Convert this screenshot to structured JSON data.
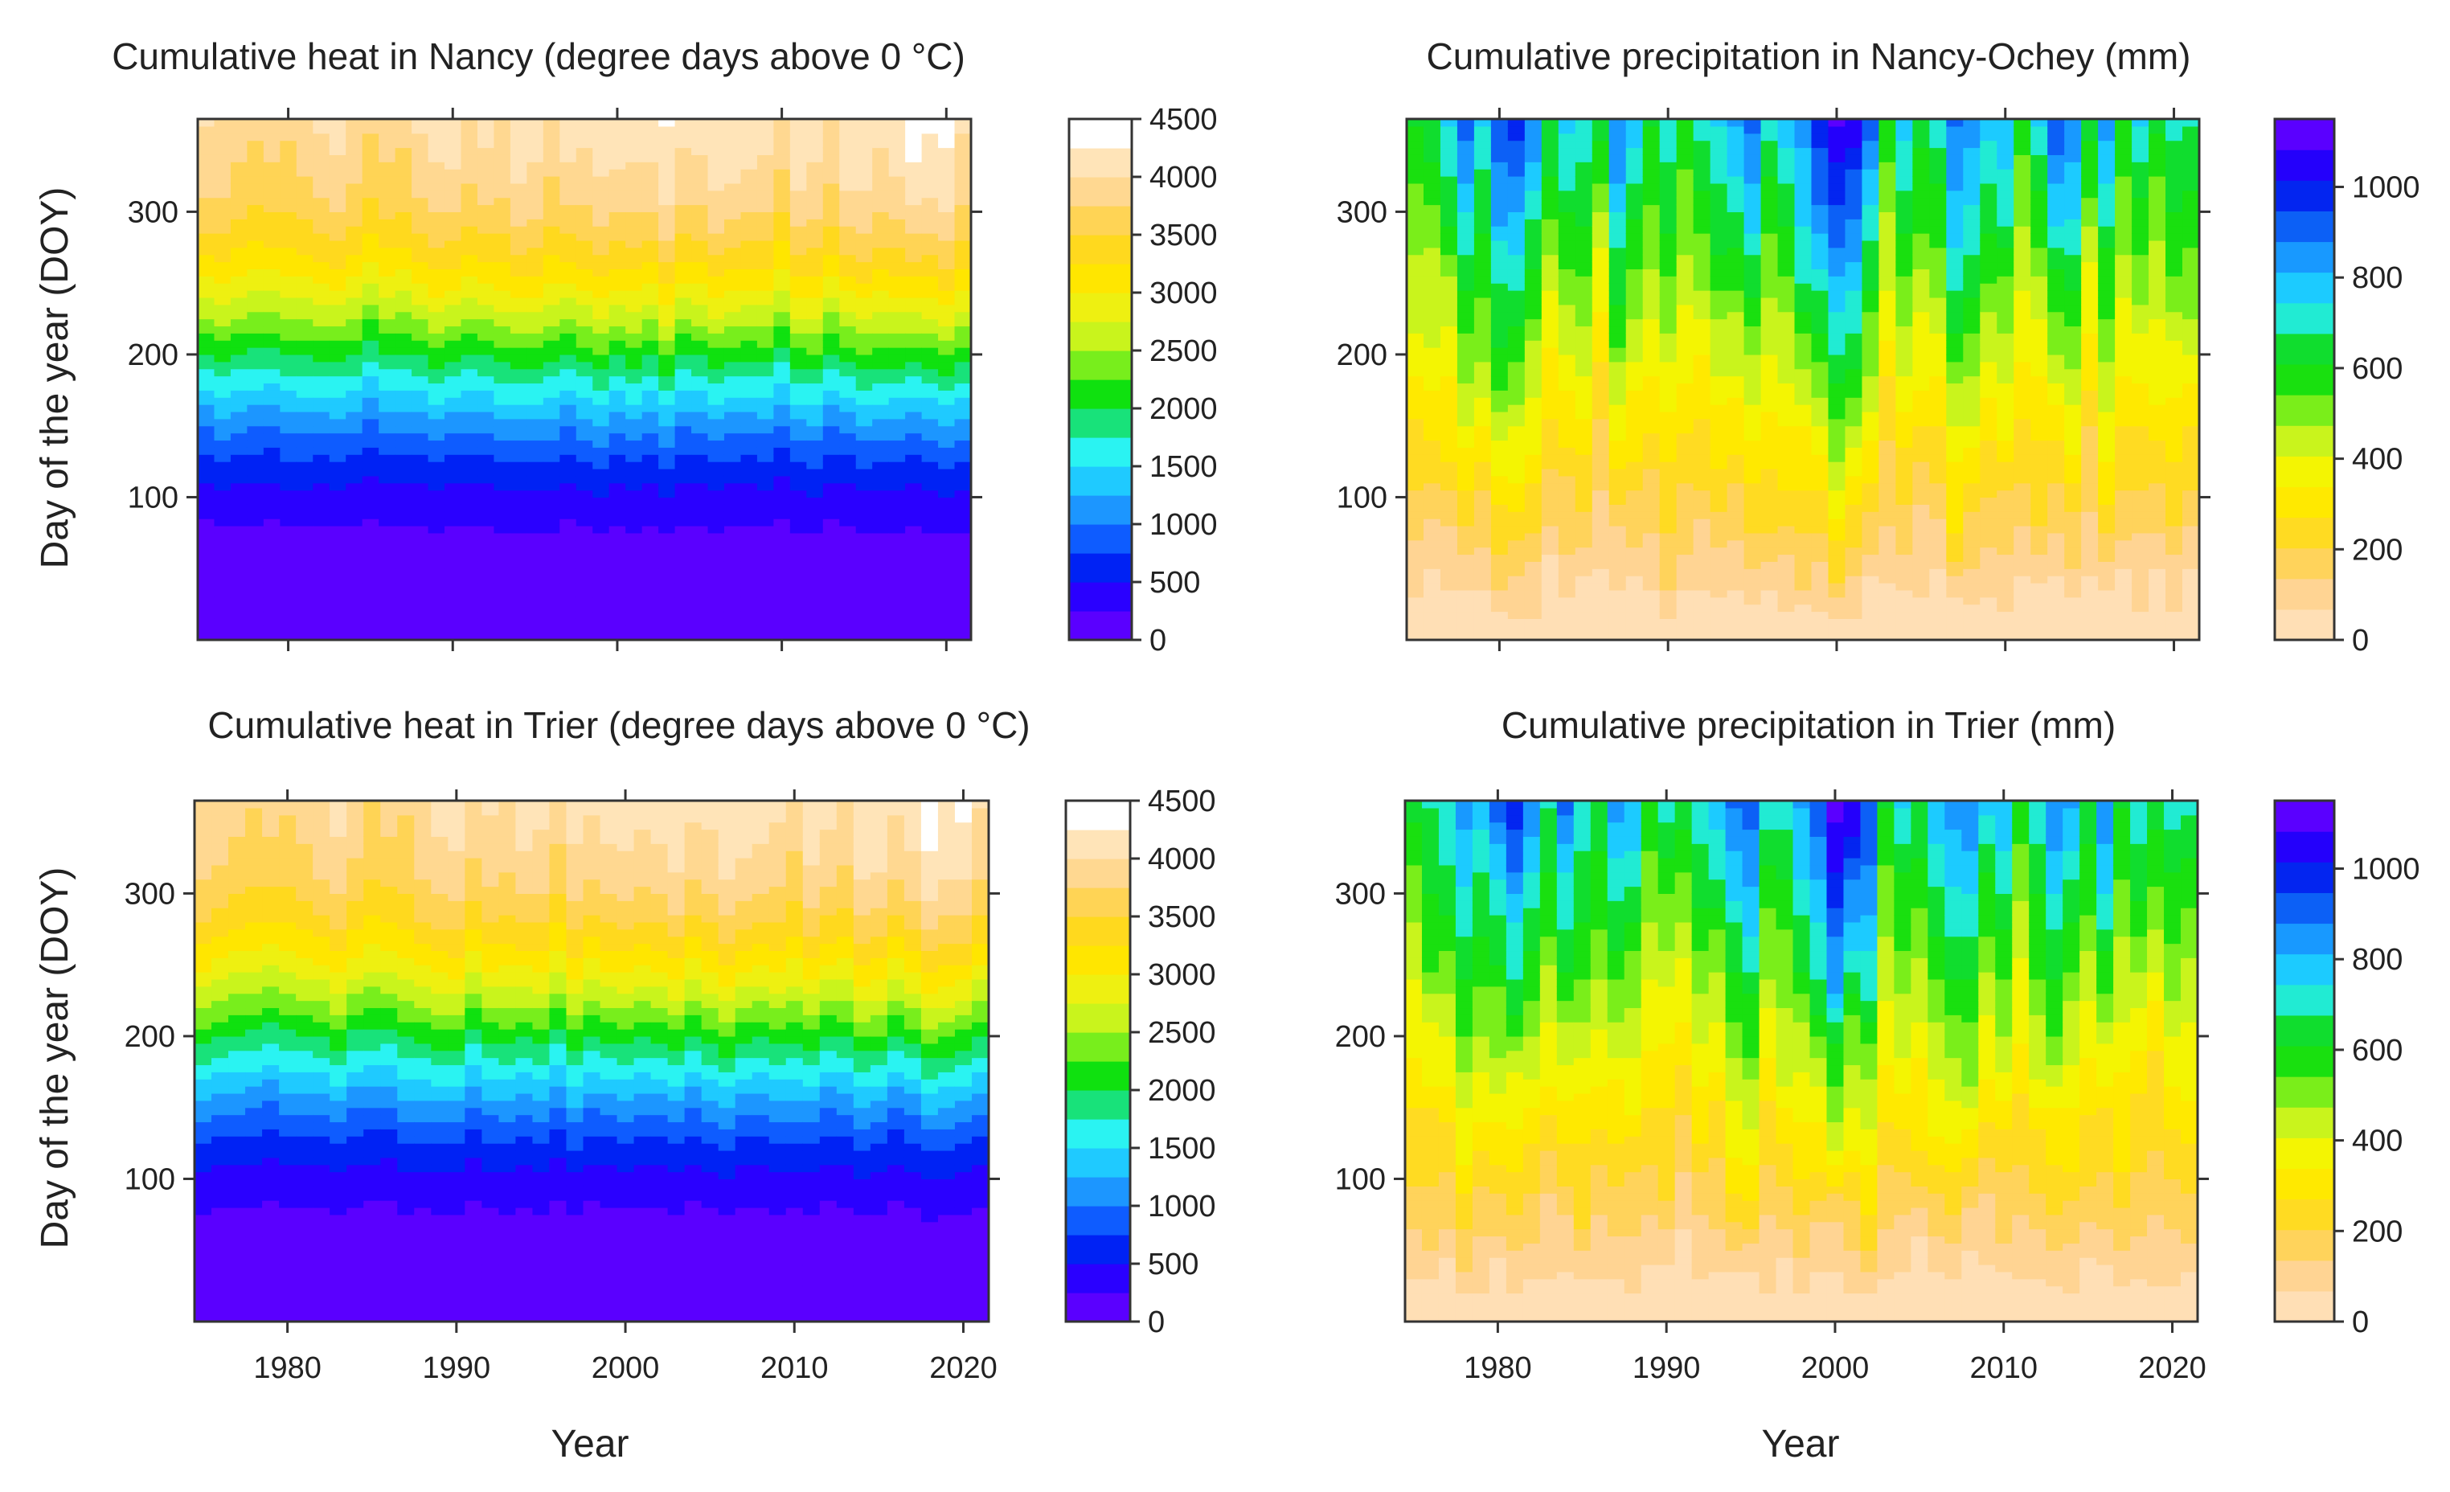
{
  "figure": {
    "x_axis_label": "Year",
    "y_axis_label": "Day of the year (DOY)"
  },
  "palettes": {
    "heat": [
      "#5a00ff",
      "#2a00ff",
      "#0022f4",
      "#0e5cff",
      "#1c96ff",
      "#1fcaff",
      "#2af3f2",
      "#18e27a",
      "#0fe10f",
      "#78ee1c",
      "#c9f41c",
      "#eef011",
      "#ffe600",
      "#ffd91e",
      "#ffd455",
      "#ffd891",
      "#ffe4b8",
      "#ffffff"
    ],
    "precip": [
      "#ffdfb5",
      "#ffd493",
      "#ffd35b",
      "#ffdb22",
      "#ffe900",
      "#f4f502",
      "#c9f41c",
      "#7aee1a",
      "#19e00f",
      "#10dd2e",
      "#21ebd3",
      "#1ccbff",
      "#1899ff",
      "#0c60f6",
      "#0325f0",
      "#2400fb",
      "#5a00ff"
    ]
  },
  "chart_data": [
    {
      "id": "nancy-heat",
      "type": "heatmap",
      "palette": "heat",
      "kind": "heat",
      "site": "Nancy",
      "title": "Cumulative heat in Nancy (degree days above 0 °C)",
      "xlabel": "",
      "ylabel": "Day of the year (DOY)",
      "x_range": [
        1974.5,
        2021.5
      ],
      "y_range": [
        0,
        365
      ],
      "x_ticks": [
        1980,
        1990,
        2000,
        2010,
        2020
      ],
      "x_tick_labels_shown": false,
      "y_ticks": [
        100,
        200,
        300
      ],
      "colorbar": {
        "min": 0,
        "max": 4500,
        "step": 250,
        "ticks": [
          "0",
          "500",
          "1000",
          "1500",
          "2000",
          "2500",
          "3000",
          "3500",
          "4000",
          "4500"
        ]
      }
    },
    {
      "id": "nancy-precip",
      "type": "heatmap",
      "palette": "precip",
      "kind": "precip",
      "site": "Nancy-Ochey",
      "title": "Cumulative precipitation in Nancy-Ochey (mm)",
      "xlabel": "",
      "ylabel": "",
      "x_range": [
        1974.5,
        2021.5
      ],
      "y_range": [
        0,
        365
      ],
      "x_ticks": [
        1980,
        1990,
        2000,
        2010,
        2020
      ],
      "x_tick_labels_shown": false,
      "y_ticks": [
        100,
        200,
        300
      ],
      "colorbar": {
        "min": 0,
        "max": 1150,
        "step": 67.6,
        "ticks": [
          "0",
          "200",
          "400",
          "600",
          "800",
          "1000"
        ]
      }
    },
    {
      "id": "trier-heat",
      "type": "heatmap",
      "palette": "heat",
      "kind": "heat",
      "site": "Trier",
      "title": "Cumulative heat in Trier (degree days above 0 °C)",
      "xlabel": "Year",
      "ylabel": "Day of the year (DOY)",
      "x_range": [
        1974.5,
        2021.5
      ],
      "y_range": [
        0,
        365
      ],
      "x_ticks": [
        1980,
        1990,
        2000,
        2010,
        2020
      ],
      "x_tick_labels_shown": true,
      "y_ticks": [
        100,
        200,
        300
      ],
      "colorbar": {
        "min": 0,
        "max": 4500,
        "step": 250,
        "ticks": [
          "0",
          "500",
          "1000",
          "1500",
          "2000",
          "2500",
          "3000",
          "3500",
          "4000",
          "4500"
        ]
      }
    },
    {
      "id": "trier-precip",
      "type": "heatmap",
      "palette": "precip",
      "kind": "precip",
      "site": "Trier",
      "title": "Cumulative precipitation in Trier (mm)",
      "xlabel": "Year",
      "ylabel": "",
      "x_range": [
        1974.5,
        2021.5
      ],
      "y_range": [
        0,
        365
      ],
      "x_ticks": [
        1980,
        1990,
        2000,
        2010,
        2020
      ],
      "x_tick_labels_shown": true,
      "y_ticks": [
        100,
        200,
        300
      ],
      "colorbar": {
        "min": 0,
        "max": 1150,
        "step": 67.6,
        "ticks": [
          "0",
          "200",
          "400",
          "600",
          "800",
          "1000"
        ]
      }
    }
  ],
  "series": {
    "years": [
      1975,
      1976,
      1977,
      1978,
      1979,
      1980,
      1981,
      1982,
      1983,
      1984,
      1985,
      1986,
      1987,
      1988,
      1989,
      1990,
      1991,
      1992,
      1993,
      1994,
      1995,
      1996,
      1997,
      1998,
      1999,
      2000,
      2001,
      2002,
      2003,
      2004,
      2005,
      2006,
      2007,
      2008,
      2009,
      2010,
      2011,
      2012,
      2013,
      2014,
      2015,
      2016,
      2017,
      2018,
      2019,
      2020,
      2021
    ],
    "nancy_heat_annual_total": [
      4020,
      3980,
      3850,
      3790,
      3860,
      3790,
      3870,
      4020,
      4080,
      3920,
      3780,
      3850,
      3800,
      4030,
      4080,
      4120,
      3940,
      4060,
      3950,
      4160,
      4090,
      3880,
      4110,
      4050,
      4130,
      4150,
      4090,
      4120,
      4260,
      4060,
      4080,
      4240,
      4190,
      4120,
      4070,
      3880,
      4210,
      4090,
      3950,
      4250,
      4220,
      4050,
      4160,
      4380,
      4270,
      4310,
      4030
    ],
    "trier_heat_annual_total": [
      4000,
      3940,
      3820,
      3760,
      3840,
      3770,
      3840,
      3990,
      4060,
      3890,
      3750,
      3820,
      3770,
      4000,
      4060,
      4100,
      3910,
      4030,
      3930,
      4140,
      4060,
      3860,
      4090,
      4030,
      4110,
      4130,
      4060,
      4100,
      4240,
      4040,
      4060,
      4220,
      4170,
      4100,
      4040,
      3860,
      4190,
      4070,
      3930,
      4230,
      4200,
      4030,
      4140,
      4360,
      4250,
      4290,
      4010
    ],
    "nancy_precip_annual_total": [
      620,
      650,
      760,
      900,
      770,
      940,
      980,
      860,
      660,
      780,
      720,
      660,
      880,
      790,
      620,
      740,
      610,
      690,
      760,
      820,
      900,
      720,
      790,
      870,
      990,
      1120,
      1080,
      930,
      590,
      780,
      660,
      720,
      890,
      850,
      790,
      810,
      580,
      760,
      940,
      860,
      640,
      850,
      600,
      760,
      630,
      700,
      710
    ],
    "trier_precip_annual_total": [
      640,
      700,
      740,
      880,
      800,
      920,
      1000,
      860,
      700,
      890,
      720,
      660,
      850,
      790,
      600,
      720,
      640,
      720,
      800,
      900,
      940,
      730,
      740,
      820,
      960,
      1150,
      1080,
      940,
      620,
      760,
      680,
      800,
      880,
      880,
      760,
      810,
      600,
      740,
      880,
      820,
      640,
      860,
      620,
      740,
      650,
      720,
      700
    ]
  }
}
